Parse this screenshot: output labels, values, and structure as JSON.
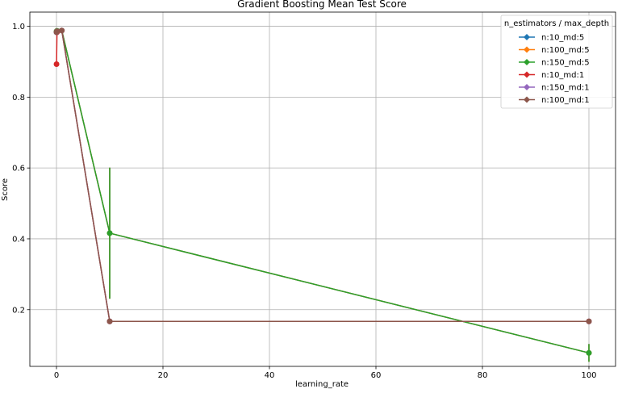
{
  "chart_data": {
    "type": "line",
    "title": "Gradient Boosting Mean Test Score",
    "xlabel": "learning_rate",
    "ylabel": "Score",
    "xlim": [
      -5,
      105
    ],
    "ylim": [
      0.04,
      1.04
    ],
    "xticks": [
      0,
      20,
      40,
      60,
      80,
      100
    ],
    "yticks": [
      0.2,
      0.4,
      0.6,
      0.8,
      1.0
    ],
    "xtick_labels": [
      "0",
      "20",
      "40",
      "60",
      "80",
      "100"
    ],
    "ytick_labels": [
      "0.2",
      "0.4",
      "0.6",
      "0.8",
      "1.0"
    ],
    "grid": true,
    "legend_title": "n_estimators / max_depth",
    "legend_position": "top-right",
    "x": [
      0.01,
      0.1,
      1,
      10,
      100
    ],
    "series": [
      {
        "name": "n:10_md:5",
        "color": "#1f77b4",
        "values": [
          0.985,
          0.987,
          0.988,
          0.416,
          0.078
        ],
        "errors": [
          0,
          0,
          0,
          0.185,
          0.025
        ]
      },
      {
        "name": "n:100_md:5",
        "color": "#ff7f0e",
        "values": [
          0.985,
          0.987,
          0.988,
          0.416,
          0.078
        ],
        "errors": [
          0,
          0,
          0,
          0.185,
          0.025
        ]
      },
      {
        "name": "n:150_md:5",
        "color": "#2ca02c",
        "values": [
          0.985,
          0.987,
          0.988,
          0.416,
          0.078
        ],
        "errors": [
          0,
          0,
          0,
          0.185,
          0.025
        ]
      },
      {
        "name": "n:10_md:1",
        "color": "#d62728",
        "values": [
          0.893,
          0.983,
          0.988,
          0.167,
          0.167
        ],
        "errors": [
          0,
          0,
          0,
          0,
          0
        ]
      },
      {
        "name": "n:150_md:1",
        "color": "#9467bd",
        "values": [
          0.983,
          0.986,
          0.988,
          0.167,
          0.167
        ],
        "errors": [
          0,
          0,
          0,
          0,
          0
        ]
      },
      {
        "name": "n:100_md:1",
        "color": "#8c564b",
        "values": [
          0.983,
          0.986,
          0.988,
          0.167,
          0.167
        ],
        "errors": [
          0,
          0,
          0,
          0,
          0
        ]
      }
    ]
  }
}
